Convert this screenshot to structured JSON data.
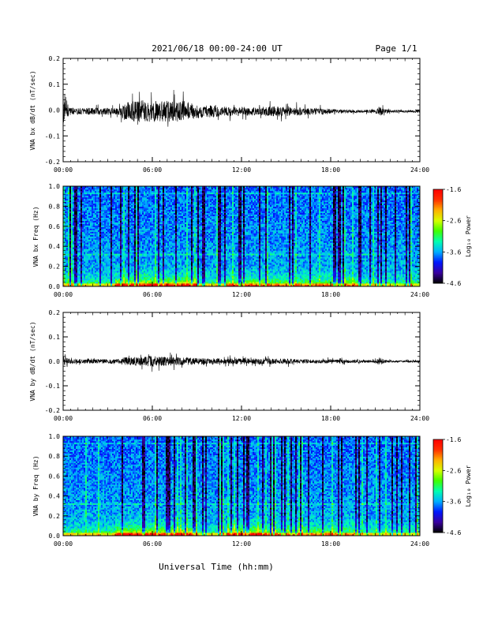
{
  "header": {
    "title": "2021/06/18  00:00-24:00 UT",
    "page": "Page 1/1"
  },
  "x_axis": {
    "label": "Universal Time (hh:mm)",
    "tick_labels": [
      "00:00",
      "06:00",
      "12:00",
      "18:00",
      "24:00"
    ]
  },
  "colorbar": {
    "label": "Log₁₀ Power",
    "tick_labels": [
      "-1.6",
      "-2.6",
      "-3.6",
      "-4.6"
    ],
    "range": [
      -4.6,
      -1.6
    ],
    "colors": [
      "#000000",
      "#3a00a0",
      "#0018ff",
      "#00b0ff",
      "#00ffb0",
      "#40ff00",
      "#d8ff00",
      "#ffb000",
      "#ff3000",
      "#ff0000"
    ]
  },
  "chart_data": [
    {
      "type": "line",
      "ylabel": "VNA bx dB/dt (nT/sec)",
      "xlim": [
        0,
        24
      ],
      "ylim": [
        -0.2,
        0.2
      ],
      "ytick_labels": [
        "-0.2",
        "-0.1",
        "0.0",
        "0.1",
        "0.2"
      ],
      "baseline": -0.005,
      "envelope_hours": [
        0,
        0.1,
        0.5,
        2,
        3.8,
        4,
        5,
        6,
        7,
        8,
        8.5,
        9,
        10,
        11,
        12,
        13,
        14,
        15,
        16,
        17,
        17.5,
        18,
        19,
        20,
        21,
        21.3,
        21.6,
        22,
        23,
        24
      ],
      "envelope_amplitude": [
        0.17,
        0.07,
        0.03,
        0.03,
        0.03,
        0.07,
        0.1,
        0.09,
        0.09,
        0.09,
        0.08,
        0.06,
        0.05,
        0.04,
        0.04,
        0.035,
        0.045,
        0.04,
        0.035,
        0.03,
        0.03,
        0.02,
        0.015,
        0.012,
        0.015,
        0.045,
        0.02,
        0.012,
        0.01,
        0.01
      ]
    },
    {
      "type": "heatmap",
      "ylabel": "VNA bx Freq (Hz)",
      "xlim": [
        0,
        24
      ],
      "ylim": [
        0.0,
        1.0
      ],
      "ytick_labels": [
        "0.0",
        "0.2",
        "0.4",
        "0.6",
        "0.8",
        "1.0"
      ],
      "color_scale": "Log10 Power",
      "zlim": [
        -4.6,
        -1.6
      ]
    },
    {
      "type": "line",
      "ylabel": "VNA by dB/dt (nT/sec)",
      "xlim": [
        0,
        24
      ],
      "ylim": [
        -0.2,
        0.2
      ],
      "ytick_labels": [
        "-0.2",
        "-0.1",
        "0.0",
        "0.1",
        "0.2"
      ],
      "baseline": 0.0,
      "envelope_hours": [
        0,
        0.1,
        0.5,
        2,
        3.8,
        4,
        5,
        6,
        7,
        8,
        9,
        10,
        11,
        12,
        13,
        14,
        15,
        16,
        17,
        18,
        19,
        20,
        21,
        21.3,
        21.6,
        22,
        23,
        24
      ],
      "envelope_amplitude": [
        0.12,
        0.04,
        0.02,
        0.02,
        0.02,
        0.035,
        0.04,
        0.05,
        0.04,
        0.035,
        0.03,
        0.03,
        0.025,
        0.03,
        0.025,
        0.025,
        0.025,
        0.02,
        0.02,
        0.018,
        0.015,
        0.012,
        0.012,
        0.035,
        0.015,
        0.01,
        0.008,
        0.008
      ]
    },
    {
      "type": "heatmap",
      "ylabel": "VNA by Freq (Hz)",
      "xlim": [
        0,
        24
      ],
      "ylim": [
        0.0,
        1.0
      ],
      "ytick_labels": [
        "0.0",
        "0.2",
        "0.4",
        "0.6",
        "0.8",
        "1.0"
      ],
      "color_scale": "Log10 Power",
      "zlim": [
        -4.6,
        -1.6
      ]
    }
  ]
}
